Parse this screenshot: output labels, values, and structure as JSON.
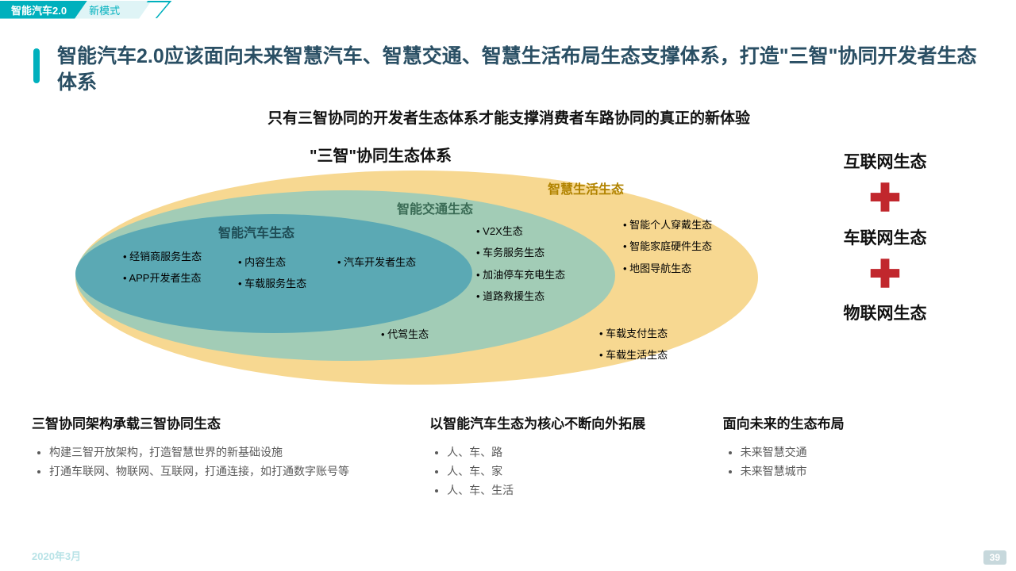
{
  "header": {
    "tag1": "智能汽车2.0",
    "tag2": "新模式"
  },
  "title": "智能汽车2.0应该面向未来智慧汽车、智慧交通、智慧生活布局生态支撑体系，打造\"三智\"协同开发者生态体系",
  "subtitle": "只有三智协同的开发者生态体系才能支撑消费者车路协同的真正的新体验",
  "diagram": {
    "title": "\"三智\"协同生态体系",
    "ellipses": {
      "outer": {
        "label": "智慧生活生态",
        "fill": "#f7d891",
        "label_color": "#b18300",
        "items": [
          "智能个人穿戴生态",
          "智能家庭硬件生态",
          "地图导航生态",
          "车载支付生态",
          "车载生活生态"
        ]
      },
      "mid": {
        "label": "智能交通生态",
        "fill": "#a2ccb6",
        "label_color": "#3a6b55",
        "items": [
          "V2X生态",
          "车务服务生态",
          "加油停车充电生态",
          "道路救援生态",
          "代驾生态"
        ]
      },
      "inner": {
        "label": "智能汽车生态",
        "fill": "#5ba9b4",
        "label_color": "#1e4c55",
        "items_left": [
          "经销商服务生态",
          "APP开发者生态"
        ],
        "items_mid": [
          "内容生态",
          "车载服务生态"
        ],
        "items_right": [
          "汽车开发者生态"
        ]
      }
    }
  },
  "right_stack": {
    "items": [
      "互联网生态",
      "车联网生态",
      "物联网生态"
    ],
    "plus_color": "#c1272d"
  },
  "bottom": {
    "col1": {
      "title": "三智协同架构承载三智协同生态",
      "items": [
        "构建三智开放架构，打造智慧世界的新基础设施",
        "打通车联网、物联网、互联网，打通连接，如打通数字账号等"
      ]
    },
    "col2": {
      "title": "以智能汽车生态为核心不断向外拓展",
      "items": [
        "人、车、路",
        "人、车、家",
        "人、车、生活"
      ]
    },
    "col3": {
      "title": "面向未来的生态布局",
      "items": [
        "未来智慧交通",
        "未来智慧城市"
      ]
    }
  },
  "footer": {
    "date": "2020年3月",
    "page": "39"
  }
}
